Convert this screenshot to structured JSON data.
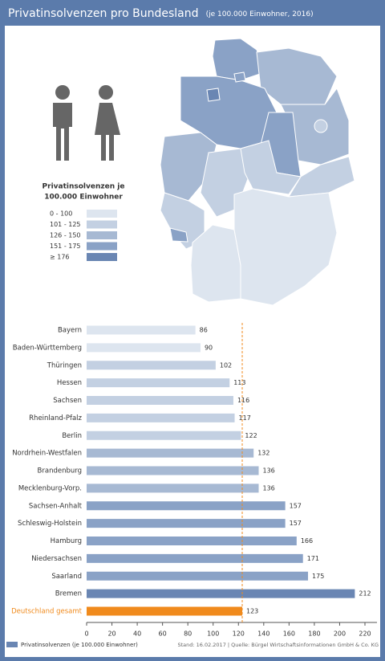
{
  "chart_data": {
    "type": "bar",
    "title": "Privatinsolvenzen pro Bundesland",
    "subtitle": "(je 100.000 Einwohner, 2016)",
    "map_legend": {
      "title": [
        "Privatinsolvenzen je",
        "100.000 Einwohner"
      ],
      "classes": [
        {
          "label": "0 - 100",
          "color": "#dde5ef"
        },
        {
          "label": "101 - 125",
          "color": "#c3d0e2"
        },
        {
          "label": "126 - 150",
          "color": "#a7b9d3"
        },
        {
          "label": "151 - 175",
          "color": "#8aa2c6"
        },
        {
          "label": "≥ 176",
          "color": "#6a86b3"
        }
      ]
    },
    "categories": [
      "Bayern",
      "Baden-Württemberg",
      "Thüringen",
      "Hessen",
      "Sachsen",
      "Rheinland-Pfalz",
      "Berlin",
      "Nordrhein-Westfalen",
      "Brandenburg",
      "Mecklenburg-Vorp.",
      "Sachsen-Anhalt",
      "Schleswig-Holstein",
      "Hamburg",
      "Niedersachsen",
      "Saarland",
      "Bremen",
      "Deutschland gesamt"
    ],
    "series": [
      {
        "name": "Privatinsolvenzen (je 100.000 Einwohner)",
        "color": "#6a86b3",
        "values": [
          86,
          90,
          102,
          113,
          116,
          117,
          122,
          132,
          136,
          136,
          157,
          157,
          166,
          171,
          175,
          212,
          123
        ],
        "colors": [
          "#dde5ef",
          "#dde5ef",
          "#c3d0e2",
          "#c3d0e2",
          "#c3d0e2",
          "#c3d0e2",
          "#c3d0e2",
          "#a7b9d3",
          "#a7b9d3",
          "#a7b9d3",
          "#8aa2c6",
          "#8aa2c6",
          "#8aa2c6",
          "#8aa2c6",
          "#8aa2c6",
          "#6a86b3",
          "#f08a1c"
        ]
      }
    ],
    "xlim": [
      0,
      220
    ],
    "xticks": [
      0,
      20,
      40,
      60,
      80,
      100,
      120,
      140,
      160,
      180,
      200,
      220
    ],
    "source": "Stand: 16.02.2017 | Quelle: Bürgel Wirtschaftsinformationen GmbH & Co. KG"
  }
}
